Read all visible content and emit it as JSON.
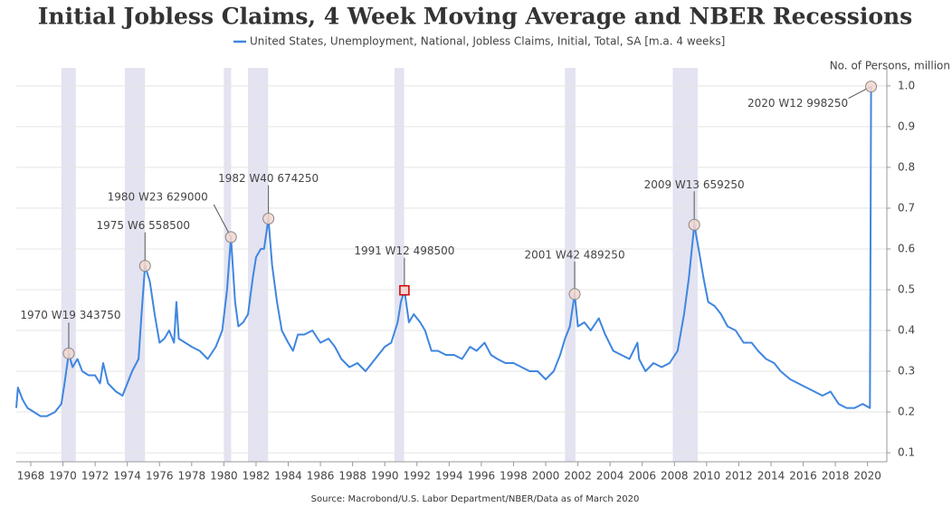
{
  "chart_data": {
    "type": "line",
    "title": "Initial Jobless Claims, 4 Week Moving Average and NBER Recessions",
    "y_label": "No. of Persons, million",
    "source": "Source: Macrobond/U.S. Labor Department/NBER/Data as of March 2020",
    "xlim": [
      1967.1,
      2021.2
    ],
    "ylim": [
      0.078,
      1.044
    ],
    "xticks": [
      1968,
      1970,
      1972,
      1974,
      1976,
      1978,
      1980,
      1982,
      1984,
      1986,
      1988,
      1990,
      1992,
      1994,
      1996,
      1998,
      2000,
      2002,
      2004,
      2006,
      2008,
      2010,
      2012,
      2014,
      2016,
      2018,
      2020
    ],
    "yticks": [
      0.1,
      0.2,
      0.3,
      0.4,
      0.5,
      0.6,
      0.7,
      0.8,
      0.9,
      {
        "value": 1,
        "label": "1.0"
      }
    ],
    "grid": true,
    "recession_color": "#e3e3f1",
    "recessions": [
      [
        1969.9,
        1970.8
      ],
      [
        1973.85,
        1975.1
      ],
      [
        1980.0,
        1980.45
      ],
      [
        1981.5,
        1982.75
      ],
      [
        1990.6,
        1991.2
      ],
      [
        2001.2,
        2001.85
      ],
      [
        2007.9,
        2009.45
      ]
    ],
    "series": [
      {
        "name": "United States, Unemployment, National, Jobless Claims, Initial, Total, SA [m.a. 4 weeks]",
        "color": "#3f86e0",
        "x": [
          1967.1,
          1967.2,
          1967.5,
          1967.8,
          1968.2,
          1968.6,
          1969.0,
          1969.5,
          1969.9,
          1970.1,
          1970.36,
          1970.6,
          1970.9,
          1971.2,
          1971.6,
          1972.0,
          1972.3,
          1972.5,
          1972.8,
          1973.3,
          1973.7,
          1974.0,
          1974.3,
          1974.7,
          1974.9,
          1975.1,
          1975.4,
          1975.7,
          1976.0,
          1976.3,
          1976.6,
          1976.9,
          1977.05,
          1977.2,
          1977.6,
          1978.0,
          1978.5,
          1979.0,
          1979.5,
          1979.9,
          1980.2,
          1980.44,
          1980.7,
          1980.9,
          1981.2,
          1981.5,
          1981.8,
          1982.0,
          1982.3,
          1982.5,
          1982.77,
          1983.0,
          1983.3,
          1983.6,
          1984.0,
          1984.3,
          1984.6,
          1985.0,
          1985.5,
          1986.0,
          1986.5,
          1986.9,
          1987.3,
          1987.8,
          1988.3,
          1988.8,
          1989.2,
          1989.6,
          1990.0,
          1990.4,
          1990.8,
          1991.0,
          1991.22,
          1991.5,
          1991.8,
          1992.2,
          1992.5,
          1992.9,
          1993.3,
          1993.8,
          1994.3,
          1994.8,
          1995.3,
          1995.7,
          1996.2,
          1996.6,
          1997.0,
          1997.5,
          1998.0,
          1998.5,
          1999.0,
          1999.5,
          2000.0,
          2000.5,
          2000.9,
          2001.2,
          2001.5,
          2001.8,
          2002.0,
          2002.4,
          2002.8,
          2003.3,
          2003.7,
          2004.2,
          2004.7,
          2005.2,
          2005.7,
          2005.8,
          2006.2,
          2006.7,
          2007.2,
          2007.7,
          2008.2,
          2008.6,
          2008.9,
          2009.23,
          2009.5,
          2009.8,
          2010.1,
          2010.5,
          2010.9,
          2011.3,
          2011.8,
          2012.3,
          2012.8,
          2013.2,
          2013.7,
          2014.2,
          2014.6,
          2015.2,
          2015.7,
          2016.2,
          2016.7,
          2017.2,
          2017.7,
          2018.2,
          2018.7,
          2019.2,
          2019.7,
          2020.15,
          2020.22
        ],
        "values": [
          0.21,
          0.26,
          0.23,
          0.21,
          0.2,
          0.19,
          0.19,
          0.2,
          0.22,
          0.27,
          0.34375,
          0.31,
          0.33,
          0.3,
          0.29,
          0.29,
          0.27,
          0.32,
          0.27,
          0.25,
          0.24,
          0.27,
          0.3,
          0.33,
          0.45,
          0.5585,
          0.52,
          0.44,
          0.37,
          0.38,
          0.4,
          0.37,
          0.47,
          0.38,
          0.37,
          0.36,
          0.35,
          0.33,
          0.36,
          0.4,
          0.5,
          0.629,
          0.47,
          0.41,
          0.42,
          0.44,
          0.53,
          0.58,
          0.6,
          0.6,
          0.67425,
          0.56,
          0.47,
          0.4,
          0.37,
          0.35,
          0.39,
          0.39,
          0.4,
          0.37,
          0.38,
          0.36,
          0.33,
          0.31,
          0.32,
          0.3,
          0.32,
          0.34,
          0.36,
          0.37,
          0.42,
          0.47,
          0.4985,
          0.42,
          0.44,
          0.42,
          0.4,
          0.35,
          0.35,
          0.34,
          0.34,
          0.33,
          0.36,
          0.35,
          0.37,
          0.34,
          0.33,
          0.32,
          0.32,
          0.31,
          0.3,
          0.3,
          0.28,
          0.3,
          0.34,
          0.38,
          0.41,
          0.48925,
          0.41,
          0.42,
          0.4,
          0.43,
          0.39,
          0.35,
          0.34,
          0.33,
          0.37,
          0.33,
          0.3,
          0.32,
          0.31,
          0.32,
          0.35,
          0.44,
          0.53,
          0.65925,
          0.6,
          0.53,
          0.47,
          0.46,
          0.44,
          0.41,
          0.4,
          0.37,
          0.37,
          0.35,
          0.33,
          0.32,
          0.3,
          0.28,
          0.27,
          0.26,
          0.25,
          0.24,
          0.25,
          0.22,
          0.21,
          0.21,
          0.22,
          0.21,
          0.99825
        ]
      }
    ],
    "annotations": [
      {
        "label": "1970 W19 343750",
        "x": 1970.36,
        "y": 0.34375,
        "marker": "circle"
      },
      {
        "label": "1975 W6 558500",
        "x": 1975.1,
        "y": 0.5585,
        "marker": "circle"
      },
      {
        "label": "1980 W23 629000",
        "x": 1980.44,
        "y": 0.629,
        "marker": "circle"
      },
      {
        "label": "1982 W40 674250",
        "x": 1982.77,
        "y": 0.67425,
        "marker": "circle"
      },
      {
        "label": "1991 W12 498500",
        "x": 1991.22,
        "y": 0.4985,
        "marker": "square"
      },
      {
        "label": "2001 W42 489250",
        "x": 2001.8,
        "y": 0.48925,
        "marker": "circle"
      },
      {
        "label": "2009 W13 659250",
        "x": 2009.23,
        "y": 0.65925,
        "marker": "circle"
      },
      {
        "label": "2020 W12 998250",
        "x": 2020.22,
        "y": 0.99825,
        "marker": "circle"
      }
    ]
  }
}
